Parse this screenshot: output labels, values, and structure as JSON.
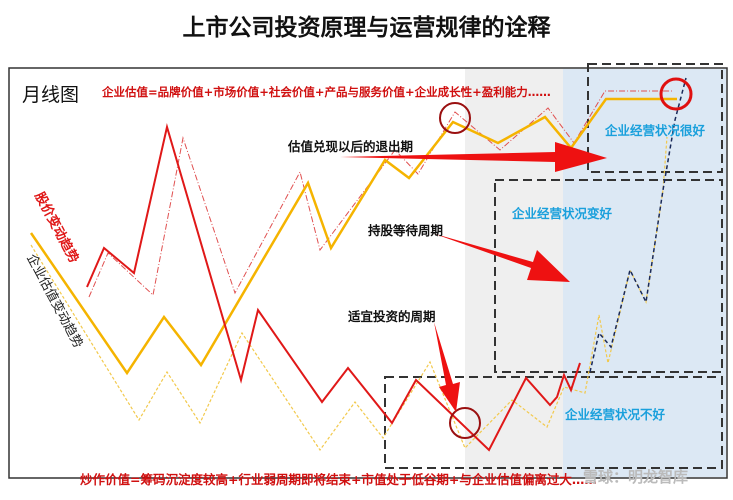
{
  "title": "上市公司投资原理与运营规律的诠释",
  "chart_label": "月线图",
  "valuation_formula": "企业估值=品牌价值+市场价值+社会价值+产品与服务价值+企业成长性+盈利能力……",
  "speculation_formula": "炒作价值=筹码沉淀度较高+行业弱周期即将结束+市值处于低谷期+与企业估值偏离过大……",
  "watermark": "雪球：明龙智库",
  "legend": {
    "stock_price_trend": "股价变动趋势",
    "valuation_trend": "企业估值变动趋势"
  },
  "annotations": {
    "exit_period": "估值兑现以后的退出期",
    "holding_period": "持股等待周期",
    "investment_period": "适宜投资的周期"
  },
  "zones": {
    "very_good": "企业经营状况很好",
    "improving": "企业经营状况变好",
    "bad": "企业经营状况不好"
  },
  "colors": {
    "stock_price": "#e01818",
    "valuation": "#f5b400",
    "zone_label": "#1aa0dc",
    "gray_band": "#efefef",
    "blue_band": "#dce8f4"
  }
}
